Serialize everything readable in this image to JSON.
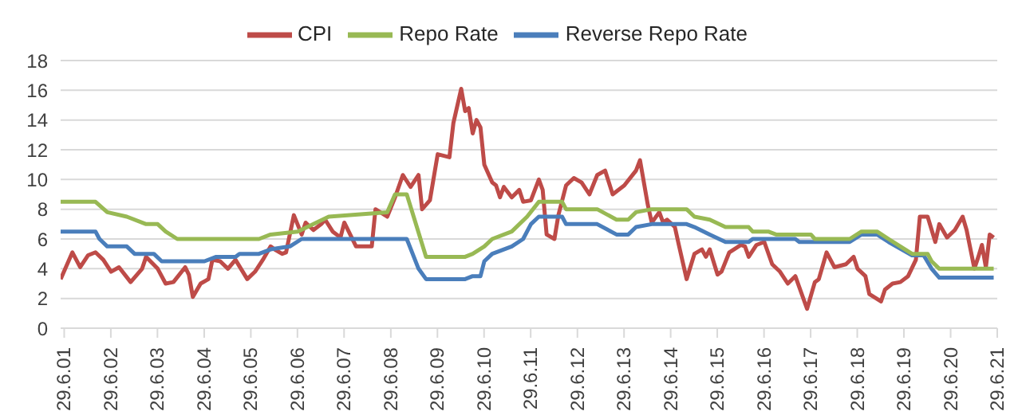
{
  "chart_data": {
    "type": "line",
    "legend": "top",
    "grid": "y",
    "marker": "none",
    "line_style": "solid",
    "xlim": [
      "2001-06-01",
      "2021-06-29"
    ],
    "xticks": [
      {
        "value": "2001-06-29",
        "label": "29.6.01"
      },
      {
        "value": "2002-06-29",
        "label": "29.6.02"
      },
      {
        "value": "2003-06-29",
        "label": "29.6.03"
      },
      {
        "value": "2004-06-29",
        "label": "29.6.04"
      },
      {
        "value": "2005-06-29",
        "label": "29.6.05"
      },
      {
        "value": "2006-06-29",
        "label": "29.6.06"
      },
      {
        "value": "2007-06-29",
        "label": "29.6.07"
      },
      {
        "value": "2008-06-29",
        "label": "29.6.08"
      },
      {
        "value": "2009-06-29",
        "label": "29.6.09"
      },
      {
        "value": "2010-06-29",
        "label": "29.6.10"
      },
      {
        "value": "2011-06-29",
        "label": "29.6.11"
      },
      {
        "value": "2012-06-29",
        "label": "29.6.12"
      },
      {
        "value": "2013-06-29",
        "label": "29.6.13"
      },
      {
        "value": "2014-06-29",
        "label": "29.6.14"
      },
      {
        "value": "2015-06-29",
        "label": "29.6.15"
      },
      {
        "value": "2016-06-29",
        "label": "29.6.16"
      },
      {
        "value": "2017-06-29",
        "label": "29.6.17"
      },
      {
        "value": "2018-06-29",
        "label": "29.6.18"
      },
      {
        "value": "2019-06-29",
        "label": "29.6.19"
      },
      {
        "value": "2020-06-29",
        "label": "29.6.20"
      },
      {
        "value": "2021-06-29",
        "label": "29.6.21"
      }
    ],
    "ylim": [
      0,
      18
    ],
    "yticks": [
      0,
      2,
      4,
      6,
      8,
      10,
      12,
      14,
      16,
      18
    ],
    "series": [
      {
        "name": "CPI",
        "color": "#be4b48",
        "x": [
          "2001-06",
          "2001-09",
          "2001-11",
          "2002-01",
          "2002-03",
          "2002-05",
          "2002-07",
          "2002-09",
          "2002-12",
          "2003-03",
          "2003-04",
          "2003-07",
          "2003-09",
          "2003-11",
          "2004-02",
          "2004-03",
          "2004-04",
          "2004-06",
          "2004-08",
          "2004-09",
          "2004-11",
          "2005-01",
          "2005-03",
          "2005-06",
          "2005-08",
          "2005-10",
          "2005-12",
          "2006-01",
          "2006-03",
          "2006-04",
          "2006-06",
          "2006-08",
          "2006-09",
          "2006-11",
          "2007-01",
          "2007-02",
          "2007-04",
          "2007-06",
          "2007-07",
          "2007-10",
          "2008-02",
          "2008-03",
          "2008-06",
          "2008-08",
          "2008-10",
          "2008-12",
          "2009-02",
          "2009-03",
          "2009-05",
          "2009-07",
          "2009-10",
          "2009-11",
          "2010-01",
          "2010-02",
          "2010-03",
          "2010-04",
          "2010-05",
          "2010-06",
          "2010-07",
          "2010-09",
          "2010-10",
          "2010-11",
          "2010-12",
          "2011-02",
          "2011-04",
          "2011-05",
          "2011-07",
          "2011-09",
          "2011-10",
          "2011-11",
          "2012-01",
          "2012-02",
          "2012-04",
          "2012-06",
          "2012-08",
          "2012-10",
          "2012-12",
          "2013-02",
          "2013-04",
          "2013-07",
          "2013-10",
          "2013-11",
          "2014-01",
          "2014-02",
          "2014-04",
          "2014-05",
          "2014-06",
          "2014-08",
          "2014-09",
          "2014-11",
          "2015-01",
          "2015-03",
          "2015-04",
          "2015-05",
          "2015-07",
          "2015-08",
          "2015-10",
          "2016-01",
          "2016-02",
          "2016-03",
          "2016-05",
          "2016-07",
          "2016-09",
          "2016-11",
          "2017-01",
          "2017-03",
          "2017-06",
          "2017-08",
          "2017-09",
          "2017-11",
          "2018-01",
          "2018-04",
          "2018-06",
          "2018-07",
          "2018-09",
          "2018-10",
          "2019-01",
          "2019-02",
          "2019-04",
          "2019-06",
          "2019-08",
          "2019-10",
          "2019-11",
          "2020-01",
          "2020-03",
          "2020-04",
          "2020-06",
          "2020-08",
          "2020-10",
          "2020-11",
          "2021-01",
          "2021-02",
          "2021-03",
          "2021-04",
          "2021-05",
          "2021-06"
        ],
        "values": [
          3.3,
          5.1,
          4.1,
          4.9,
          5.1,
          4.6,
          3.8,
          4.1,
          3.1,
          4.0,
          4.8,
          4.0,
          3.0,
          3.1,
          4.1,
          3.6,
          2.1,
          3.0,
          3.3,
          4.6,
          4.5,
          4.0,
          4.6,
          3.3,
          3.8,
          4.6,
          5.5,
          5.3,
          5.0,
          5.1,
          7.6,
          6.3,
          7.1,
          6.6,
          7.0,
          7.3,
          6.5,
          6.1,
          7.1,
          5.5,
          5.5,
          8.0,
          7.5,
          8.8,
          10.3,
          9.5,
          10.3,
          8.0,
          8.6,
          11.7,
          11.5,
          13.8,
          16.1,
          14.6,
          14.8,
          13.1,
          14.0,
          13.5,
          11.0,
          9.8,
          9.6,
          8.8,
          9.5,
          8.8,
          9.3,
          8.5,
          8.6,
          10.0,
          9.3,
          6.3,
          6.0,
          7.6,
          9.6,
          10.1,
          9.8,
          9.0,
          10.3,
          10.6,
          9.0,
          9.6,
          10.6,
          11.3,
          8.3,
          7.1,
          7.8,
          7.1,
          7.3,
          6.8,
          5.6,
          3.3,
          5.0,
          5.3,
          4.8,
          5.3,
          3.6,
          3.8,
          5.1,
          5.6,
          5.5,
          4.8,
          5.6,
          5.8,
          4.3,
          3.8,
          3.0,
          3.5,
          1.3,
          3.1,
          3.3,
          5.1,
          4.1,
          4.3,
          4.8,
          4.0,
          3.5,
          2.3,
          1.8,
          2.6,
          3.0,
          3.1,
          3.5,
          4.6,
          7.5,
          7.5,
          5.8,
          7.0,
          6.1,
          6.6,
          7.5,
          6.6,
          4.0,
          4.8,
          5.6,
          4.1,
          6.3,
          6.1
        ]
      },
      {
        "name": "Reverse Repo Rate",
        "color": "#4a7ebb",
        "x": [
          "2001-06",
          "2002-03",
          "2002-04",
          "2002-06",
          "2002-11",
          "2003-01",
          "2003-06",
          "2003-08",
          "2004-07",
          "2004-10",
          "2005-03",
          "2005-04",
          "2005-09",
          "2005-12",
          "2006-05",
          "2006-08",
          "2008-11",
          "2009-02",
          "2009-04",
          "2010-02",
          "2010-04",
          "2010-06",
          "2010-07",
          "2010-09",
          "2011-02",
          "2011-05",
          "2011-07",
          "2011-09",
          "2012-03",
          "2012-04",
          "2012-12",
          "2013-05",
          "2013-08",
          "2013-10",
          "2014-02",
          "2014-11",
          "2015-01",
          "2015-05",
          "2015-09",
          "2016-03",
          "2016-04",
          "2017-03",
          "2017-04",
          "2018-05",
          "2018-08",
          "2018-12",
          "2019-03",
          "2019-09",
          "2019-12",
          "2020-02",
          "2020-04",
          "2021-06"
        ],
        "values": [
          6.5,
          6.5,
          6.0,
          5.5,
          5.5,
          5.0,
          5.0,
          4.5,
          4.5,
          4.8,
          4.8,
          5.0,
          5.0,
          5.3,
          5.5,
          6.0,
          6.0,
          4.0,
          3.3,
          3.3,
          3.5,
          3.5,
          4.5,
          5.0,
          5.5,
          6.0,
          7.0,
          7.5,
          7.5,
          7.0,
          7.0,
          6.3,
          6.3,
          6.8,
          7.0,
          7.0,
          6.8,
          6.3,
          5.8,
          5.8,
          6.0,
          6.0,
          5.8,
          5.8,
          6.3,
          6.3,
          5.8,
          4.9,
          4.9,
          4.0,
          3.4,
          3.4
        ]
      },
      {
        "name": "Repo Rate",
        "color": "#98b954",
        "x": [
          "2001-06",
          "2002-03",
          "2002-06",
          "2002-11",
          "2003-04",
          "2003-07",
          "2003-09",
          "2003-12",
          "2005-09",
          "2005-12",
          "2006-07",
          "2006-11",
          "2007-03",
          "2008-06",
          "2008-08",
          "2008-11",
          "2009-04",
          "2010-02",
          "2010-04",
          "2010-07",
          "2010-09",
          "2011-02",
          "2011-06",
          "2011-09",
          "2012-03",
          "2012-04",
          "2012-12",
          "2013-05",
          "2013-08",
          "2013-10",
          "2014-02",
          "2014-11",
          "2015-01",
          "2015-05",
          "2015-09",
          "2016-03",
          "2016-04",
          "2016-08",
          "2016-10",
          "2017-07",
          "2017-08",
          "2018-05",
          "2018-08",
          "2018-12",
          "2019-03",
          "2019-06",
          "2019-09",
          "2020-01",
          "2020-02",
          "2020-04",
          "2021-06"
        ],
        "values": [
          8.5,
          8.5,
          7.8,
          7.5,
          7.0,
          7.0,
          6.5,
          6.0,
          6.0,
          6.3,
          6.5,
          7.0,
          7.5,
          7.8,
          9.0,
          9.0,
          4.8,
          4.8,
          5.0,
          5.5,
          6.0,
          6.5,
          7.5,
          8.5,
          8.5,
          8.0,
          8.0,
          7.3,
          7.3,
          7.8,
          8.0,
          8.0,
          7.5,
          7.3,
          6.8,
          6.8,
          6.5,
          6.5,
          6.3,
          6.3,
          6.0,
          6.0,
          6.5,
          6.5,
          6.0,
          5.5,
          5.0,
          5.0,
          4.5,
          4.0,
          4.0
        ]
      }
    ]
  }
}
